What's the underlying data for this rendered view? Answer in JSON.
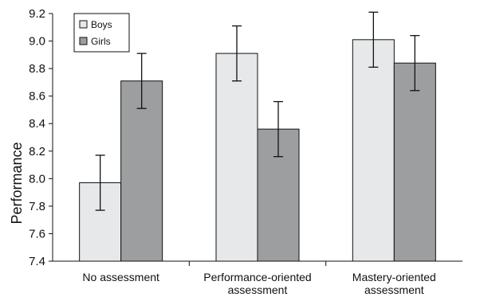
{
  "chart_data": {
    "type": "bar",
    "title": "",
    "xlabel": "",
    "ylabel": "Performance",
    "ylim": [
      7.4,
      9.2
    ],
    "yticks": [
      "7.4",
      "7.6",
      "7.8",
      "8.0",
      "8.2",
      "8.4",
      "8.6",
      "8.8",
      "9.0",
      "9.2"
    ],
    "categories": [
      [
        "No assessment"
      ],
      [
        "Performance-oriented",
        "assessment"
      ],
      [
        "Mastery-oriented",
        "assessment"
      ]
    ],
    "series": [
      {
        "name": "Boys",
        "color": "#e6e8ea",
        "values": [
          7.97,
          8.91,
          9.01
        ],
        "error": [
          0.2,
          0.2,
          0.2
        ]
      },
      {
        "name": "Girls",
        "color": "#9c9ea0",
        "values": [
          8.71,
          8.36,
          8.84
        ],
        "error": [
          0.2,
          0.2,
          0.2
        ]
      }
    ],
    "grid": false,
    "legend_position": "top-left",
    "error_bars": true
  }
}
